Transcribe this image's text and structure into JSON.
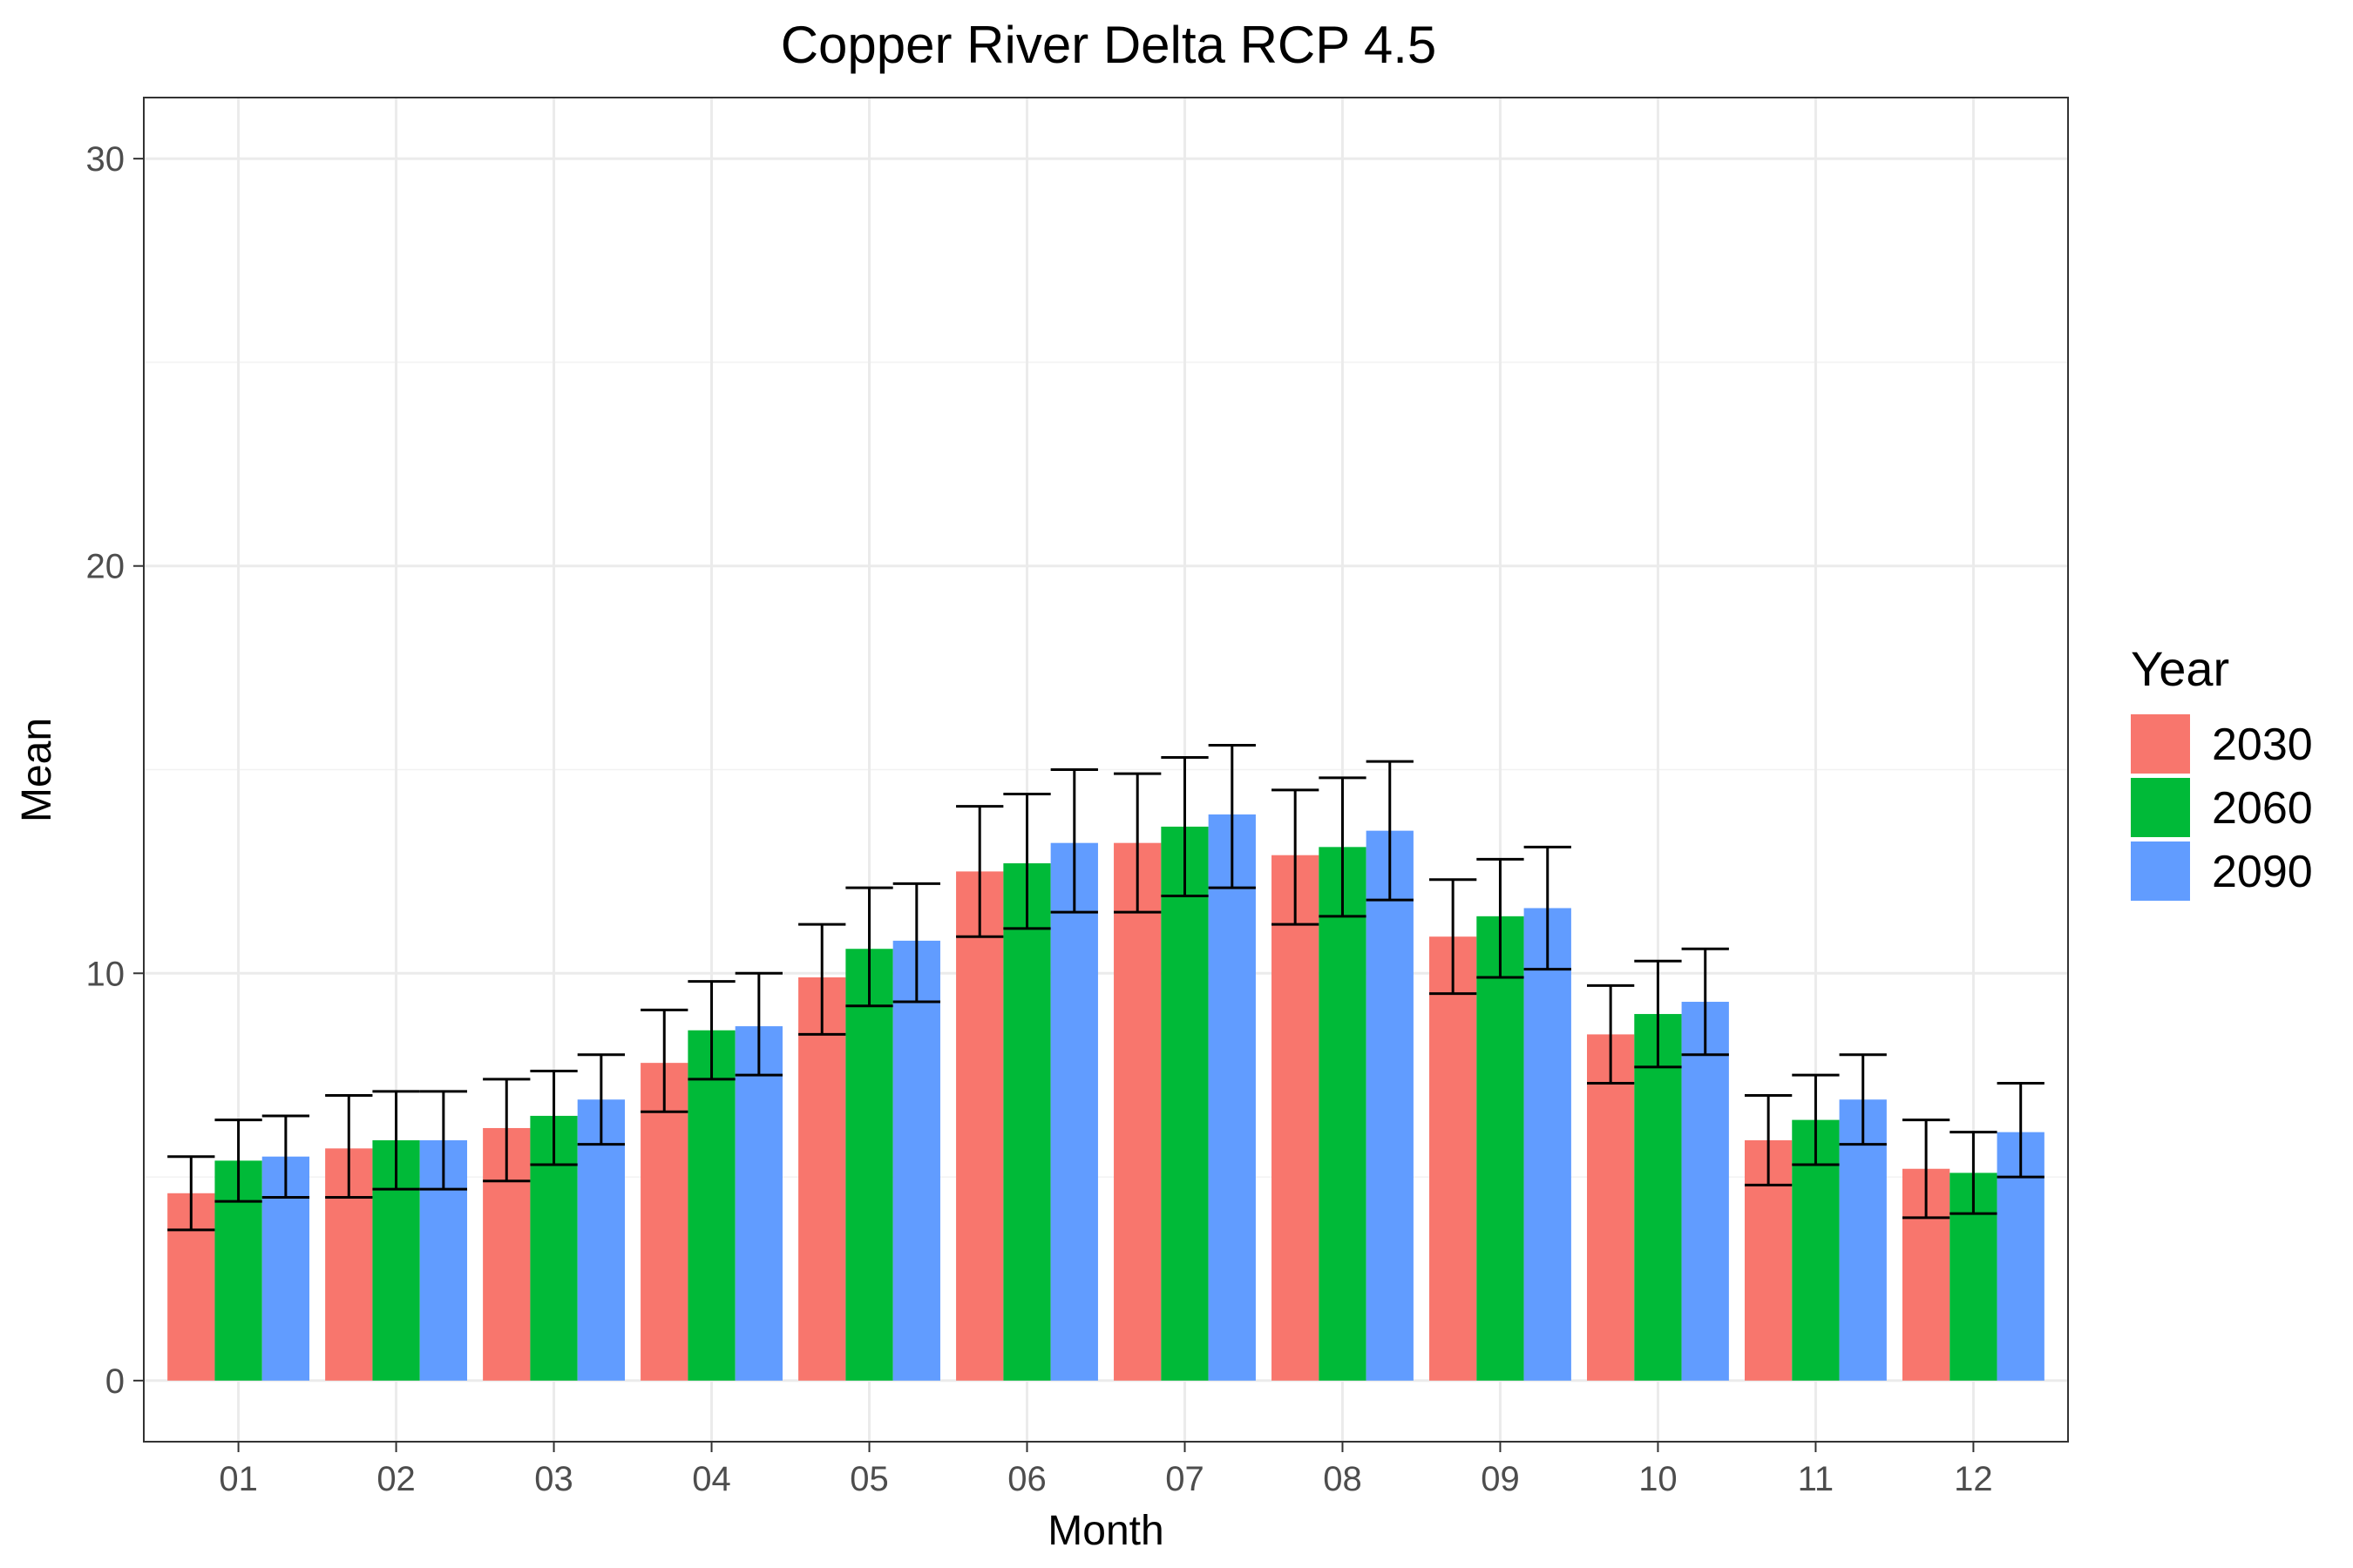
{
  "chart_data": {
    "type": "bar",
    "title": "Copper River Delta RCP 4.5",
    "xlabel": "Month",
    "ylabel": "Mean",
    "ylim": [
      -1.5,
      31.5
    ],
    "yticks": [
      0,
      10,
      20,
      30
    ],
    "grid": true,
    "legend": {
      "title": "Year",
      "placement": "right"
    },
    "categories": [
      "01",
      "02",
      "03",
      "04",
      "05",
      "06",
      "07",
      "08",
      "09",
      "10",
      "11",
      "12"
    ],
    "series": [
      {
        "name": "2030",
        "color": "#F8766D",
        "values": [
          4.6,
          5.7,
          6.2,
          7.8,
          9.9,
          12.5,
          13.2,
          12.9,
          10.9,
          8.5,
          5.9,
          5.2
        ],
        "lower": [
          3.7,
          4.5,
          4.9,
          6.6,
          8.5,
          10.9,
          11.5,
          11.2,
          9.5,
          7.3,
          4.8,
          4.0
        ],
        "upper": [
          5.5,
          7.0,
          7.4,
          9.1,
          11.2,
          14.1,
          14.9,
          14.5,
          12.3,
          9.7,
          7.0,
          6.4
        ]
      },
      {
        "name": "2060",
        "color": "#00BA38",
        "values": [
          5.4,
          5.9,
          6.5,
          8.6,
          10.6,
          12.7,
          13.6,
          13.1,
          11.4,
          9.0,
          6.4,
          5.1
        ],
        "lower": [
          4.4,
          4.7,
          5.3,
          7.4,
          9.2,
          11.1,
          11.9,
          11.4,
          9.9,
          7.7,
          5.3,
          4.1
        ],
        "upper": [
          6.4,
          7.1,
          7.6,
          9.8,
          12.1,
          14.4,
          15.3,
          14.8,
          12.8,
          10.3,
          7.5,
          6.1
        ]
      },
      {
        "name": "2090",
        "color": "#619CFF",
        "values": [
          5.5,
          5.9,
          6.9,
          8.7,
          10.8,
          13.2,
          13.9,
          13.5,
          11.6,
          9.3,
          6.9,
          6.1
        ],
        "lower": [
          4.5,
          4.7,
          5.8,
          7.5,
          9.3,
          11.5,
          12.1,
          11.8,
          10.1,
          8.0,
          5.8,
          5.0
        ],
        "upper": [
          6.5,
          7.1,
          8.0,
          10.0,
          12.2,
          15.0,
          15.6,
          15.2,
          13.1,
          10.6,
          8.0,
          7.3
        ]
      }
    ]
  }
}
